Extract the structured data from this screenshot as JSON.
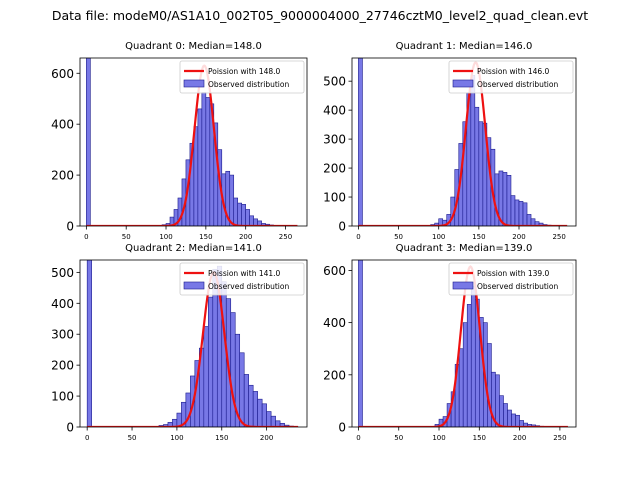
{
  "figure_title": "Data file: modeM0/AS1A10_002T05_9000004000_27746cztM0_level2_quad_clean.evt",
  "colors": {
    "hist_fill": "#7878e6",
    "hist_edge": "#1a1a8c",
    "poisson_line": "#ee1111"
  },
  "chart_data": [
    {
      "type": "bar",
      "title": "Quadrant 0: Median=148.0",
      "median": 148.0,
      "bin_width": 5,
      "xlim": [
        -8,
        277
      ],
      "ylim": [
        0,
        660
      ],
      "xticks": [
        0,
        50,
        100,
        150,
        200,
        250
      ],
      "yticks": [
        0,
        200,
        400,
        600
      ],
      "bin_left_edges": [
        0,
        95,
        100,
        105,
        110,
        115,
        120,
        125,
        130,
        135,
        140,
        145,
        150,
        155,
        160,
        165,
        170,
        175,
        180,
        185,
        190,
        195,
        200,
        205,
        210,
        215,
        220,
        225,
        230,
        235,
        240,
        245
      ],
      "counts": [
        660,
        5,
        10,
        35,
        65,
        110,
        185,
        260,
        325,
        390,
        460,
        525,
        505,
        480,
        405,
        300,
        205,
        215,
        200,
        110,
        90,
        85,
        65,
        40,
        28,
        20,
        10,
        7,
        4,
        2,
        1,
        1
      ],
      "legend": [
        "Poission with 148.0",
        "Observed distribution"
      ],
      "poisson": {
        "mean": 148.0,
        "peak": 630,
        "sigma": 12.2,
        "x_end": 265
      }
    },
    {
      "type": "bar",
      "title": "Quadrant 1: Median=146.0",
      "median": 146.0,
      "bin_width": 5,
      "xlim": [
        -8,
        271
      ],
      "ylim": [
        0,
        580
      ],
      "xticks": [
        0,
        50,
        100,
        150,
        200,
        250
      ],
      "yticks": [
        0,
        100,
        200,
        300,
        400,
        500
      ],
      "bin_left_edges": [
        0,
        90,
        95,
        100,
        105,
        110,
        115,
        120,
        125,
        130,
        135,
        140,
        145,
        150,
        155,
        160,
        165,
        170,
        175,
        180,
        185,
        190,
        195,
        200,
        205,
        210,
        215,
        220,
        225,
        230,
        235,
        240,
        245,
        250
      ],
      "counts": [
        580,
        5,
        10,
        25,
        20,
        40,
        100,
        195,
        285,
        360,
        460,
        520,
        410,
        360,
        355,
        305,
        265,
        180,
        190,
        185,
        175,
        105,
        90,
        85,
        80,
        40,
        25,
        15,
        10,
        5,
        3,
        2,
        1,
        1
      ],
      "legend": [
        "Poission with 146.0",
        "Observed distribution"
      ],
      "poisson": {
        "mean": 146.0,
        "peak": 565,
        "sigma": 12.0,
        "x_end": 260
      }
    },
    {
      "type": "bar",
      "title": "Quadrant 2: Median=141.0",
      "median": 141.0,
      "bin_width": 5,
      "xlim": [
        -8,
        245
      ],
      "ylim": [
        0,
        540
      ],
      "xticks": [
        0,
        50,
        100,
        150,
        200
      ],
      "yticks": [
        0,
        100,
        200,
        300,
        400,
        500
      ],
      "bin_left_edges": [
        0,
        80,
        85,
        90,
        95,
        100,
        105,
        110,
        115,
        120,
        125,
        130,
        135,
        140,
        145,
        150,
        155,
        160,
        165,
        170,
        175,
        180,
        185,
        190,
        195,
        200,
        205,
        210,
        215,
        220,
        225,
        230
      ],
      "counts": [
        540,
        5,
        8,
        15,
        25,
        45,
        80,
        110,
        165,
        215,
        255,
        325,
        420,
        510,
        520,
        470,
        415,
        370,
        300,
        240,
        170,
        135,
        115,
        90,
        75,
        50,
        35,
        20,
        12,
        6,
        3,
        1
      ],
      "legend": [
        "Poission with 141.0",
        "Observed distribution"
      ],
      "poisson": {
        "mean": 141.0,
        "peak": 500,
        "sigma": 11.9,
        "x_end": 235
      }
    },
    {
      "type": "bar",
      "title": "Quadrant 3: Median=139.0",
      "median": 139.0,
      "bin_width": 5,
      "xlim": [
        -8,
        270
      ],
      "ylim": [
        0,
        640
      ],
      "xticks": [
        0,
        50,
        100,
        150,
        200,
        250
      ],
      "yticks": [
        0,
        200,
        400,
        600
      ],
      "bin_left_edges": [
        0,
        95,
        100,
        105,
        110,
        115,
        120,
        125,
        130,
        135,
        140,
        145,
        150,
        155,
        160,
        165,
        170,
        175,
        180,
        185,
        190,
        195,
        200,
        205,
        210,
        215,
        220,
        225,
        230,
        235
      ],
      "counts": [
        640,
        10,
        30,
        40,
        90,
        135,
        240,
        300,
        400,
        470,
        540,
        490,
        420,
        400,
        320,
        210,
        200,
        120,
        90,
        65,
        50,
        45,
        25,
        15,
        10,
        8,
        5,
        3,
        2,
        1
      ],
      "legend": [
        "Poission with 139.0",
        "Observed distribution"
      ],
      "poisson": {
        "mean": 139.0,
        "peak": 615,
        "sigma": 11.8,
        "x_end": 260
      }
    }
  ]
}
